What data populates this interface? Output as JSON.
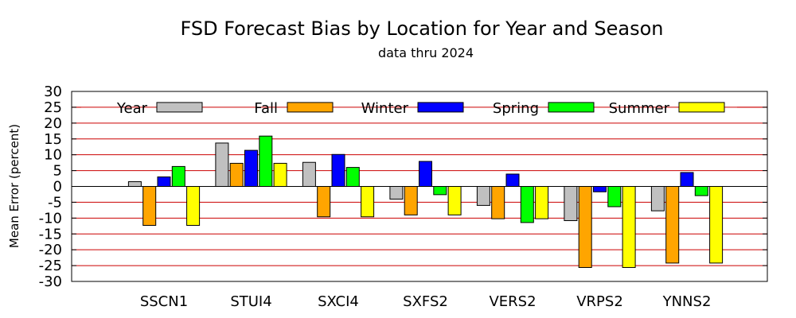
{
  "chart_data": {
    "type": "bar",
    "title": "FSD Forecast Bias by Location for Year and Season",
    "subtitle": "data thru 2024",
    "ylabel": "Mean Error (percent)",
    "xlabel": "",
    "ylim": [
      -30,
      30
    ],
    "yticks": [
      -30,
      -25,
      -20,
      -15,
      -10,
      -5,
      0,
      5,
      10,
      15,
      20,
      25,
      30
    ],
    "grid": "horizontal",
    "grid_color": "#cc0000",
    "legend_position": "top",
    "categories": [
      "SSCN1",
      "STUI4",
      "SXCI4",
      "SXFS2",
      "VERS2",
      "VRPS2",
      "YNNS2"
    ],
    "series": [
      {
        "name": "Year",
        "color": "#c0c0c0",
        "values": [
          1.5,
          13.7,
          7.6,
          -4.0,
          -6.0,
          -10.8,
          -7.7
        ]
      },
      {
        "name": "Fall",
        "color": "#ffa500",
        "values": [
          -12.3,
          7.3,
          -9.6,
          -9.0,
          -10.2,
          -25.6,
          -24.2
        ]
      },
      {
        "name": "Winter",
        "color": "#0000ff",
        "values": [
          3.0,
          11.4,
          10.1,
          7.9,
          3.9,
          -1.7,
          4.4
        ]
      },
      {
        "name": "Spring",
        "color": "#00ff00",
        "values": [
          6.3,
          15.9,
          6.0,
          -2.6,
          -11.4,
          -6.4,
          -2.9
        ]
      },
      {
        "name": "Summer",
        "color": "#ffff00",
        "values": [
          -12.3,
          7.3,
          -9.6,
          -9.0,
          -10.2,
          -25.6,
          -24.2
        ]
      }
    ]
  }
}
